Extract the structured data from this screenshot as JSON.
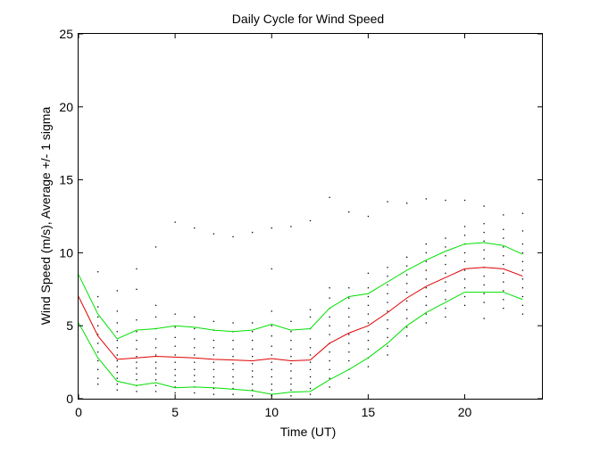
{
  "chart_data": {
    "type": "line",
    "title": "Daily Cycle for Wind Speed",
    "xlabel": "Time (UT)",
    "ylabel": "Wind Speed (m/s), Average +/- 1 sigma",
    "xlim": [
      0,
      24
    ],
    "ylim": [
      0,
      25
    ],
    "xticks": [
      0,
      5,
      10,
      15,
      20
    ],
    "yticks": [
      0,
      5,
      10,
      15,
      20,
      25
    ],
    "grid": false,
    "x": [
      0,
      1,
      2,
      3,
      4,
      5,
      6,
      7,
      8,
      9,
      10,
      11,
      12,
      13,
      14,
      15,
      16,
      17,
      18,
      19,
      20,
      21,
      22,
      23
    ],
    "series": [
      {
        "role": "average",
        "color": "#e00000",
        "values": [
          7.0,
          4.3,
          2.7,
          2.8,
          2.9,
          2.85,
          2.8,
          2.7,
          2.65,
          2.6,
          2.75,
          2.6,
          2.65,
          3.8,
          4.5,
          5.0,
          5.9,
          6.9,
          7.7,
          8.3,
          8.9,
          9.0,
          8.9,
          8.4
        ]
      },
      {
        "role": "average + 1 sigma",
        "color": "#00e000",
        "values": [
          8.5,
          5.8,
          4.1,
          4.7,
          4.8,
          5.0,
          4.9,
          4.7,
          4.6,
          4.7,
          5.1,
          4.7,
          4.8,
          6.2,
          7.0,
          7.2,
          8.0,
          8.8,
          9.5,
          10.1,
          10.6,
          10.7,
          10.5,
          9.9
        ]
      },
      {
        "role": "average - 1 sigma",
        "color": "#00e000",
        "values": [
          5.2,
          2.8,
          1.2,
          0.9,
          1.1,
          0.75,
          0.8,
          0.75,
          0.65,
          0.55,
          0.3,
          0.45,
          0.5,
          1.3,
          2.0,
          2.8,
          3.8,
          5.0,
          5.9,
          6.6,
          7.3,
          7.3,
          7.3,
          6.8
        ]
      }
    ],
    "scatter": {
      "color": "#000000",
      "points": [
        [
          1,
          1.0
        ],
        [
          1,
          1.4
        ],
        [
          1,
          2.0
        ],
        [
          1,
          2.6
        ],
        [
          1,
          3.2
        ],
        [
          1,
          3.8
        ],
        [
          1,
          4.4
        ],
        [
          1,
          5.0
        ],
        [
          1,
          5.6
        ],
        [
          1,
          6.3
        ],
        [
          1,
          7.0
        ],
        [
          1,
          8.7
        ],
        [
          2,
          0.6
        ],
        [
          2,
          1.0
        ],
        [
          2,
          1.4
        ],
        [
          2,
          1.8
        ],
        [
          2,
          2.2
        ],
        [
          2,
          2.6
        ],
        [
          2,
          3.0
        ],
        [
          2,
          3.5
        ],
        [
          2,
          4.0
        ],
        [
          2,
          4.6
        ],
        [
          2,
          5.2
        ],
        [
          2,
          6.0
        ],
        [
          2,
          7.4
        ],
        [
          3,
          0.5
        ],
        [
          3,
          0.9
        ],
        [
          3,
          1.3
        ],
        [
          3,
          1.7
        ],
        [
          3,
          2.1
        ],
        [
          3,
          2.5
        ],
        [
          3,
          2.9
        ],
        [
          3,
          3.4
        ],
        [
          3,
          4.0
        ],
        [
          3,
          4.6
        ],
        [
          3,
          5.4
        ],
        [
          3,
          7.5
        ],
        [
          3,
          8.9
        ],
        [
          4,
          0.5
        ],
        [
          4,
          0.9
        ],
        [
          4,
          1.3
        ],
        [
          4,
          1.7
        ],
        [
          4,
          2.1
        ],
        [
          4,
          2.5
        ],
        [
          4,
          3.0
        ],
        [
          4,
          3.5
        ],
        [
          4,
          4.1
        ],
        [
          4,
          4.8
        ],
        [
          4,
          5.6
        ],
        [
          4,
          6.4
        ],
        [
          4,
          10.4
        ],
        [
          5,
          0.4
        ],
        [
          5,
          0.8
        ],
        [
          5,
          1.2
        ],
        [
          5,
          1.6
        ],
        [
          5,
          2.0
        ],
        [
          5,
          2.5
        ],
        [
          5,
          3.0
        ],
        [
          5,
          3.6
        ],
        [
          5,
          4.2
        ],
        [
          5,
          4.9
        ],
        [
          5,
          5.8
        ],
        [
          5,
          12.1
        ],
        [
          6,
          0.4
        ],
        [
          6,
          0.8
        ],
        [
          6,
          1.2
        ],
        [
          6,
          1.6
        ],
        [
          6,
          2.0
        ],
        [
          6,
          2.5
        ],
        [
          6,
          3.0
        ],
        [
          6,
          3.5
        ],
        [
          6,
          4.1
        ],
        [
          6,
          4.8
        ],
        [
          6,
          5.6
        ],
        [
          6,
          11.7
        ],
        [
          7,
          0.3
        ],
        [
          7,
          0.7
        ],
        [
          7,
          1.1
        ],
        [
          7,
          1.5
        ],
        [
          7,
          2.0
        ],
        [
          7,
          2.5
        ],
        [
          7,
          3.0
        ],
        [
          7,
          3.5
        ],
        [
          7,
          4.0
        ],
        [
          7,
          4.7
        ],
        [
          7,
          5.3
        ],
        [
          7,
          11.3
        ],
        [
          8,
          0.3
        ],
        [
          8,
          0.7
        ],
        [
          8,
          1.1
        ],
        [
          8,
          1.5
        ],
        [
          8,
          2.0
        ],
        [
          8,
          2.4
        ],
        [
          8,
          2.9
        ],
        [
          8,
          3.4
        ],
        [
          8,
          4.0
        ],
        [
          8,
          4.6
        ],
        [
          8,
          5.2
        ],
        [
          8,
          11.1
        ],
        [
          9,
          0.2
        ],
        [
          9,
          0.6
        ],
        [
          9,
          1.0
        ],
        [
          9,
          1.5
        ],
        [
          9,
          1.9
        ],
        [
          9,
          2.4
        ],
        [
          9,
          2.9
        ],
        [
          9,
          3.4
        ],
        [
          9,
          4.0
        ],
        [
          9,
          4.6
        ],
        [
          9,
          5.2
        ],
        [
          9,
          11.4
        ],
        [
          10,
          0.2
        ],
        [
          10,
          0.6
        ],
        [
          10,
          1.0
        ],
        [
          10,
          1.5
        ],
        [
          10,
          2.0
        ],
        [
          10,
          2.5
        ],
        [
          10,
          3.0
        ],
        [
          10,
          3.6
        ],
        [
          10,
          4.3
        ],
        [
          10,
          5.0
        ],
        [
          10,
          6.0
        ],
        [
          10,
          8.9
        ],
        [
          10,
          11.7
        ],
        [
          11,
          0.2
        ],
        [
          11,
          0.6
        ],
        [
          11,
          1.0
        ],
        [
          11,
          1.4
        ],
        [
          11,
          1.9
        ],
        [
          11,
          2.4
        ],
        [
          11,
          2.9
        ],
        [
          11,
          3.4
        ],
        [
          11,
          4.0
        ],
        [
          11,
          4.6
        ],
        [
          11,
          5.3
        ],
        [
          11,
          11.8
        ],
        [
          12,
          0.3
        ],
        [
          12,
          0.7
        ],
        [
          12,
          1.1
        ],
        [
          12,
          1.5
        ],
        [
          12,
          2.0
        ],
        [
          12,
          2.5
        ],
        [
          12,
          3.0
        ],
        [
          12,
          3.5
        ],
        [
          12,
          4.1
        ],
        [
          12,
          4.8
        ],
        [
          12,
          5.6
        ],
        [
          12,
          6.1
        ],
        [
          12,
          12.2
        ],
        [
          13,
          0.8
        ],
        [
          13,
          1.4
        ],
        [
          13,
          2.0
        ],
        [
          13,
          2.6
        ],
        [
          13,
          3.2
        ],
        [
          13,
          3.8
        ],
        [
          13,
          4.4
        ],
        [
          13,
          5.0
        ],
        [
          13,
          5.6
        ],
        [
          13,
          6.2
        ],
        [
          13,
          6.9
        ],
        [
          13,
          7.6
        ],
        [
          13,
          13.8
        ],
        [
          14,
          1.4
        ],
        [
          14,
          2.0
        ],
        [
          14,
          2.6
        ],
        [
          14,
          3.2
        ],
        [
          14,
          3.8
        ],
        [
          14,
          4.4
        ],
        [
          14,
          5.0
        ],
        [
          14,
          5.6
        ],
        [
          14,
          6.2
        ],
        [
          14,
          6.9
        ],
        [
          14,
          7.6
        ],
        [
          14,
          12.8
        ],
        [
          15,
          2.2
        ],
        [
          15,
          2.8
        ],
        [
          15,
          3.4
        ],
        [
          15,
          4.0
        ],
        [
          15,
          4.6
        ],
        [
          15,
          5.2
        ],
        [
          15,
          5.8
        ],
        [
          15,
          6.4
        ],
        [
          15,
          7.0
        ],
        [
          15,
          7.6
        ],
        [
          15,
          8.6
        ],
        [
          15,
          12.5
        ],
        [
          16,
          3.0
        ],
        [
          16,
          3.6
        ],
        [
          16,
          4.2
        ],
        [
          16,
          4.8
        ],
        [
          16,
          5.4
        ],
        [
          16,
          6.0
        ],
        [
          16,
          6.6
        ],
        [
          16,
          7.2
        ],
        [
          16,
          7.8
        ],
        [
          16,
          8.4
        ],
        [
          16,
          9.0
        ],
        [
          16,
          13.5
        ],
        [
          17,
          4.3
        ],
        [
          17,
          4.9
        ],
        [
          17,
          5.5
        ],
        [
          17,
          6.1
        ],
        [
          17,
          6.7
        ],
        [
          17,
          7.3
        ],
        [
          17,
          7.9
        ],
        [
          17,
          8.5
        ],
        [
          17,
          9.1
        ],
        [
          17,
          9.7
        ],
        [
          17,
          13.4
        ],
        [
          18,
          5.2
        ],
        [
          18,
          5.8
        ],
        [
          18,
          6.4
        ],
        [
          18,
          7.0
        ],
        [
          18,
          7.6
        ],
        [
          18,
          8.2
        ],
        [
          18,
          8.8
        ],
        [
          18,
          9.4
        ],
        [
          18,
          10.0
        ],
        [
          18,
          10.6
        ],
        [
          18,
          13.7
        ],
        [
          19,
          5.6
        ],
        [
          19,
          6.2
        ],
        [
          19,
          6.8
        ],
        [
          19,
          7.4
        ],
        [
          19,
          8.0
        ],
        [
          19,
          8.6
        ],
        [
          19,
          9.2
        ],
        [
          19,
          9.8
        ],
        [
          19,
          10.4
        ],
        [
          19,
          11.0
        ],
        [
          19,
          13.6
        ],
        [
          20,
          6.4
        ],
        [
          20,
          7.0
        ],
        [
          20,
          7.6
        ],
        [
          20,
          8.2
        ],
        [
          20,
          8.8
        ],
        [
          20,
          9.4
        ],
        [
          20,
          10.0
        ],
        [
          20,
          10.6
        ],
        [
          20,
          11.2
        ],
        [
          20,
          11.8
        ],
        [
          20,
          13.6
        ],
        [
          21,
          5.5
        ],
        [
          21,
          6.6
        ],
        [
          21,
          7.2
        ],
        [
          21,
          7.8
        ],
        [
          21,
          8.4
        ],
        [
          21,
          9.0
        ],
        [
          21,
          9.6
        ],
        [
          21,
          10.2
        ],
        [
          21,
          10.8
        ],
        [
          21,
          11.4
        ],
        [
          21,
          12.0
        ],
        [
          21,
          13.2
        ],
        [
          22,
          6.2
        ],
        [
          22,
          6.8
        ],
        [
          22,
          7.4
        ],
        [
          22,
          8.0
        ],
        [
          22,
          8.6
        ],
        [
          22,
          9.2
        ],
        [
          22,
          9.8
        ],
        [
          22,
          10.4
        ],
        [
          22,
          11.0
        ],
        [
          22,
          11.6
        ],
        [
          22,
          12.6
        ],
        [
          23,
          5.8
        ],
        [
          23,
          6.4
        ],
        [
          23,
          7.0
        ],
        [
          23,
          7.6
        ],
        [
          23,
          8.2
        ],
        [
          23,
          8.8
        ],
        [
          23,
          9.4
        ],
        [
          23,
          10.0
        ],
        [
          23,
          10.6
        ],
        [
          23,
          11.5
        ],
        [
          23,
          12.7
        ]
      ]
    }
  }
}
